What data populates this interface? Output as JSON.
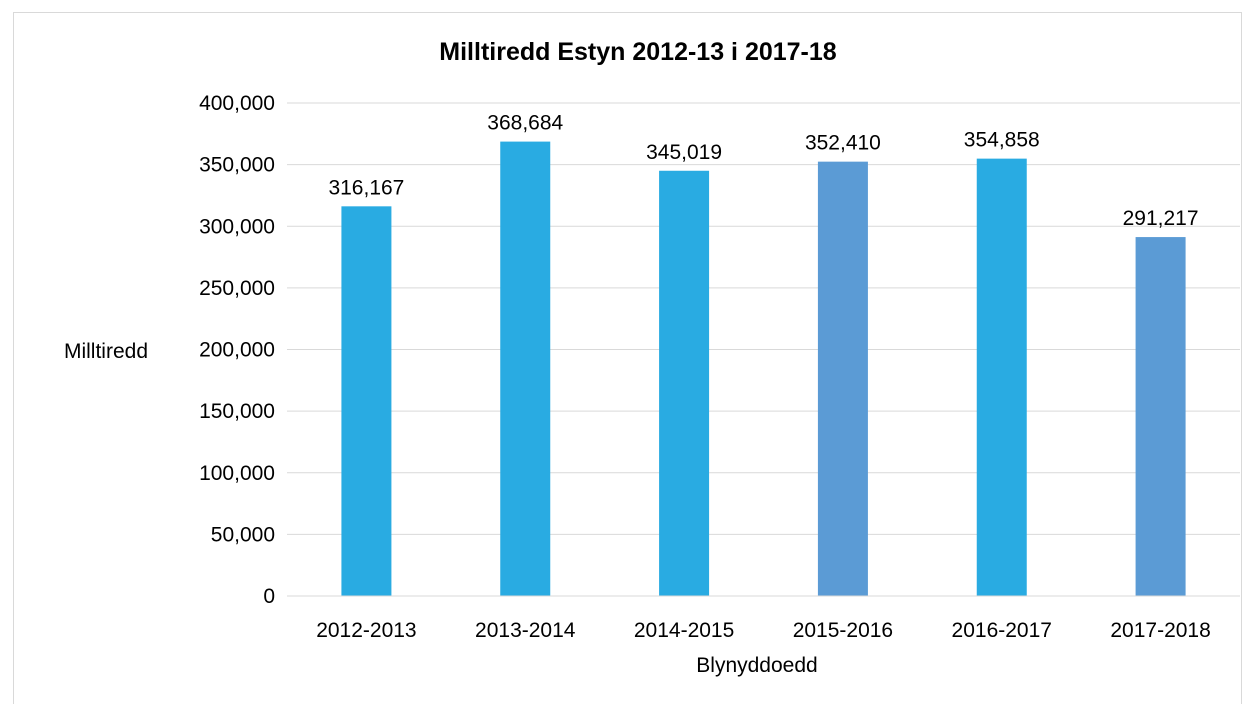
{
  "chart_data": {
    "type": "bar",
    "title": "Milltiredd Estyn 2012-13 i 2017-18",
    "xlabel": "Blynyddoedd",
    "ylabel": "Milltiredd",
    "categories": [
      "2012-2013",
      "2013-2014",
      "2014-2015",
      "2015-2016",
      "2016-2017",
      "2017-2018"
    ],
    "values": [
      316167,
      368684,
      345019,
      352410,
      354858,
      291217
    ],
    "value_labels": [
      "316,167",
      "368,684",
      "345,019",
      "352,410",
      "354,858",
      "291,217"
    ],
    "ylim": [
      0,
      400000
    ],
    "yticks": [
      0,
      50000,
      100000,
      150000,
      200000,
      250000,
      300000,
      350000,
      400000
    ],
    "ytick_labels": [
      "0",
      "50,000",
      "100,000",
      "150,000",
      "200,000",
      "250,000",
      "300,000",
      "350,000",
      "400,000"
    ],
    "bar_colors": [
      "#29abe2",
      "#29abe2",
      "#29abe2",
      "#5b9bd5",
      "#29abe2",
      "#5b9bd5"
    ],
    "grid": true,
    "legend": "none"
  }
}
